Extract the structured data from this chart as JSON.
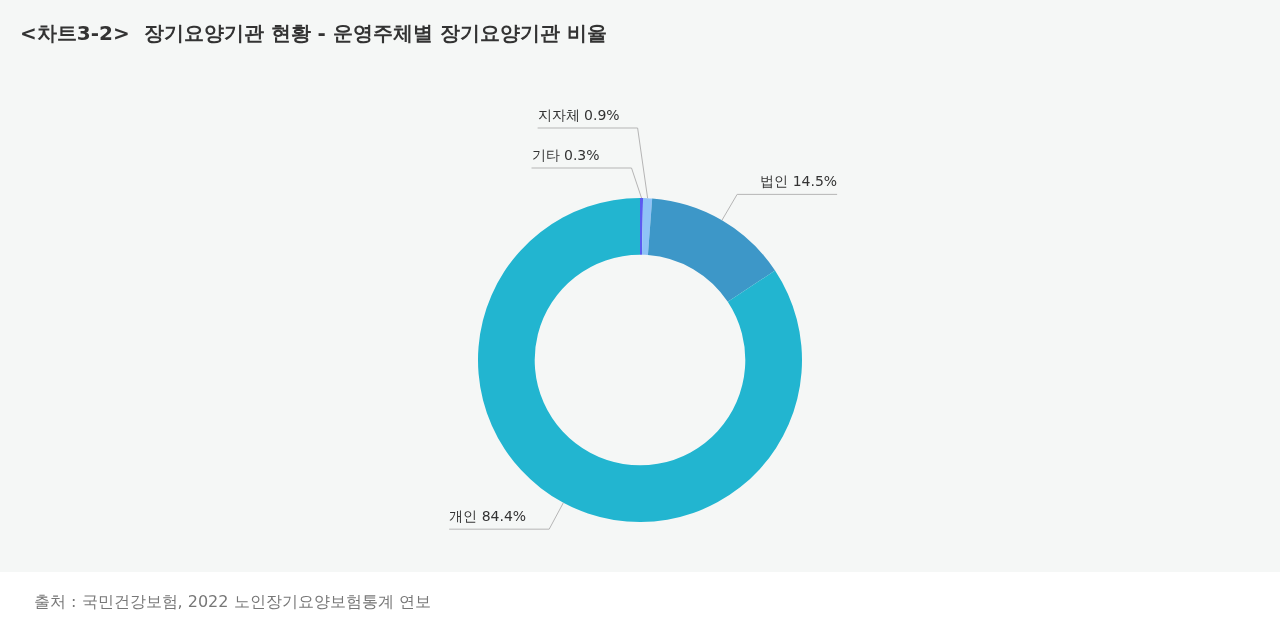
{
  "chart_data": {
    "type": "donut",
    "title": "<차트3-2>  장기요양기관 현황 - 운영주체별 장기요양기관 비율",
    "categories": [
      "기타",
      "지자체",
      "법인",
      "개인"
    ],
    "values": [
      0.3,
      0.9,
      14.5,
      84.4
    ],
    "value_labels": [
      "0.3%",
      "0.9%",
      "14.5%",
      "84.4%"
    ],
    "colors": [
      "#5b5bf0",
      "#8fc3f7",
      "#3d97c8",
      "#22b5d0"
    ],
    "legend": false,
    "annotations": [
      "출처 : 국민건강보험, 2022 노인장기요양보험통계 연보"
    ]
  }
}
